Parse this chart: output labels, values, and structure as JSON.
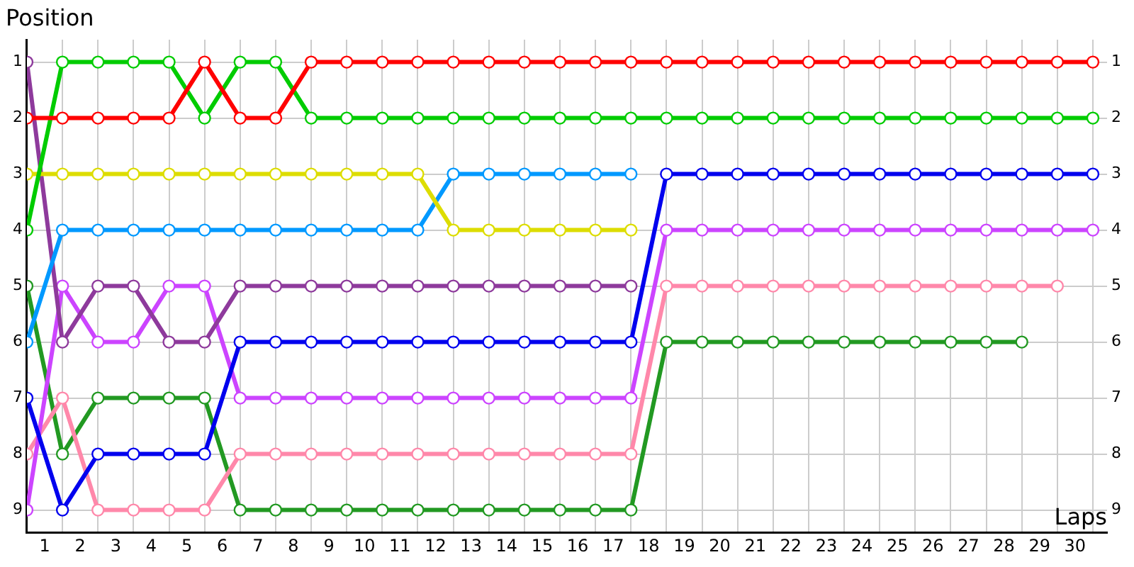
{
  "chart_data": {
    "type": "line",
    "xlabel": "Laps",
    "ylabel": "Position",
    "x": [
      0,
      1,
      2,
      3,
      4,
      5,
      6,
      7,
      8,
      9,
      10,
      11,
      12,
      13,
      14,
      15,
      16,
      17,
      18,
      19,
      20,
      21,
      22,
      23,
      24,
      25,
      26,
      27,
      28,
      29,
      30
    ],
    "xlim": [
      0,
      30.4
    ],
    "xticks": [
      {
        "value": 0,
        "label": null
      },
      {
        "value": 0.5,
        "label": "1"
      },
      {
        "value": 1,
        "label": null
      },
      {
        "value": 1.5,
        "label": "2"
      },
      {
        "value": 2,
        "label": null
      },
      {
        "value": 2.5,
        "label": "3"
      },
      {
        "value": 3,
        "label": null
      },
      {
        "value": 3.5,
        "label": "4"
      },
      {
        "value": 4,
        "label": null
      },
      {
        "value": 4.5,
        "label": "5"
      },
      {
        "value": 5,
        "label": null
      },
      {
        "value": 5.5,
        "label": "6"
      },
      {
        "value": 6,
        "label": null
      },
      {
        "value": 6.5,
        "label": "7"
      },
      {
        "value": 7,
        "label": null
      },
      {
        "value": 7.5,
        "label": "8"
      },
      {
        "value": 8,
        "label": null
      },
      {
        "value": 8.5,
        "label": "9"
      },
      {
        "value": 9,
        "label": null
      },
      {
        "value": 9.5,
        "label": "10"
      },
      {
        "value": 10,
        "label": null
      },
      {
        "value": 10.5,
        "label": "11"
      },
      {
        "value": 11,
        "label": null
      },
      {
        "value": 11.5,
        "label": "12"
      },
      {
        "value": 12,
        "label": null
      },
      {
        "value": 12.5,
        "label": "13"
      },
      {
        "value": 13,
        "label": null
      },
      {
        "value": 13.5,
        "label": "14"
      },
      {
        "value": 14,
        "label": null
      },
      {
        "value": 14.5,
        "label": "15"
      },
      {
        "value": 15,
        "label": null
      },
      {
        "value": 15.5,
        "label": "16"
      },
      {
        "value": 16,
        "label": null
      },
      {
        "value": 16.5,
        "label": "17"
      },
      {
        "value": 17,
        "label": null
      },
      {
        "value": 17.5,
        "label": "18"
      },
      {
        "value": 18,
        "label": null
      },
      {
        "value": 18.5,
        "label": "19"
      },
      {
        "value": 19,
        "label": null
      },
      {
        "value": 19.5,
        "label": "20"
      },
      {
        "value": 20,
        "label": null
      },
      {
        "value": 20.5,
        "label": "21"
      },
      {
        "value": 21,
        "label": null
      },
      {
        "value": 21.5,
        "label": "22"
      },
      {
        "value": 22,
        "label": null
      },
      {
        "value": 22.5,
        "label": "23"
      },
      {
        "value": 23,
        "label": null
      },
      {
        "value": 23.5,
        "label": "24"
      },
      {
        "value": 24,
        "label": null
      },
      {
        "value": 24.5,
        "label": "25"
      },
      {
        "value": 25,
        "label": null
      },
      {
        "value": 25.5,
        "label": "26"
      },
      {
        "value": 26,
        "label": null
      },
      {
        "value": 26.5,
        "label": "27"
      },
      {
        "value": 27,
        "label": null
      },
      {
        "value": 27.5,
        "label": "28"
      },
      {
        "value": 28,
        "label": null
      },
      {
        "value": 28.5,
        "label": "29"
      },
      {
        "value": 29,
        "label": null
      },
      {
        "value": 29.5,
        "label": "30"
      },
      {
        "value": 30,
        "label": null
      }
    ],
    "ylim": [
      9.4,
      0.6
    ],
    "yticks": [
      1,
      2,
      3,
      4,
      5,
      6,
      7,
      8,
      9
    ],
    "y2lim": [
      9.4,
      0.6
    ],
    "y2ticks": [
      1,
      2,
      3,
      4,
      5,
      6,
      7,
      8,
      9
    ],
    "grid": true,
    "legend": false,
    "marker": "circle",
    "line_style": "solid",
    "series": [
      {
        "color": "#ff0000",
        "values": [
          2,
          2,
          2,
          2,
          2,
          1,
          2,
          2,
          1,
          1,
          1,
          1,
          1,
          1,
          1,
          1,
          1,
          1,
          1,
          1,
          1,
          1,
          1,
          1,
          1,
          1,
          1,
          1,
          1,
          1,
          1
        ]
      },
      {
        "color": "#00cc00",
        "values": [
          4,
          1,
          1,
          1,
          1,
          2,
          1,
          1,
          2,
          2,
          2,
          2,
          2,
          2,
          2,
          2,
          2,
          2,
          2,
          2,
          2,
          2,
          2,
          2,
          2,
          2,
          2,
          2,
          2,
          2,
          2
        ]
      },
      {
        "color": "#dddd00",
        "values": [
          3,
          3,
          3,
          3,
          3,
          3,
          3,
          3,
          3,
          3,
          3,
          3,
          4,
          4,
          4,
          4,
          4,
          4,
          null,
          null,
          null,
          null,
          null,
          null,
          null,
          null,
          null,
          null,
          null,
          null,
          null
        ]
      },
      {
        "color": "#0099ff",
        "values": [
          6,
          4,
          4,
          4,
          4,
          4,
          4,
          4,
          4,
          4,
          4,
          4,
          3,
          3,
          3,
          3,
          3,
          3,
          null,
          null,
          null,
          null,
          null,
          null,
          null,
          null,
          null,
          null,
          null,
          null,
          null
        ]
      },
      {
        "color": "#8e3a9c",
        "values": [
          1,
          6,
          5,
          5,
          6,
          6,
          5,
          5,
          5,
          5,
          5,
          5,
          5,
          5,
          5,
          5,
          5,
          5,
          null,
          null,
          null,
          null,
          null,
          null,
          null,
          null,
          null,
          null,
          null,
          null,
          null
        ]
      },
      {
        "color": "#0000ee",
        "values": [
          7,
          9,
          8,
          8,
          8,
          8,
          6,
          6,
          6,
          6,
          6,
          6,
          6,
          6,
          6,
          6,
          6,
          6,
          3,
          3,
          3,
          3,
          3,
          3,
          3,
          3,
          3,
          3,
          3,
          3,
          3
        ]
      },
      {
        "color": "#cc44ff",
        "values": [
          9,
          5,
          6,
          6,
          5,
          5,
          7,
          7,
          7,
          7,
          7,
          7,
          7,
          7,
          7,
          7,
          7,
          7,
          4,
          4,
          4,
          4,
          4,
          4,
          4,
          4,
          4,
          4,
          4,
          4,
          4
        ]
      },
      {
        "color": "#ff88aa",
        "values": [
          8,
          7,
          9,
          9,
          9,
          9,
          8,
          8,
          8,
          8,
          8,
          8,
          8,
          8,
          8,
          8,
          8,
          8,
          5,
          5,
          5,
          5,
          5,
          5,
          5,
          5,
          5,
          5,
          5,
          5,
          null
        ]
      },
      {
        "color": "#229922",
        "values": [
          5,
          8,
          7,
          7,
          7,
          7,
          9,
          9,
          9,
          9,
          9,
          9,
          9,
          9,
          9,
          9,
          9,
          9,
          6,
          6,
          6,
          6,
          6,
          6,
          6,
          6,
          6,
          6,
          6,
          null,
          null
        ]
      }
    ]
  }
}
